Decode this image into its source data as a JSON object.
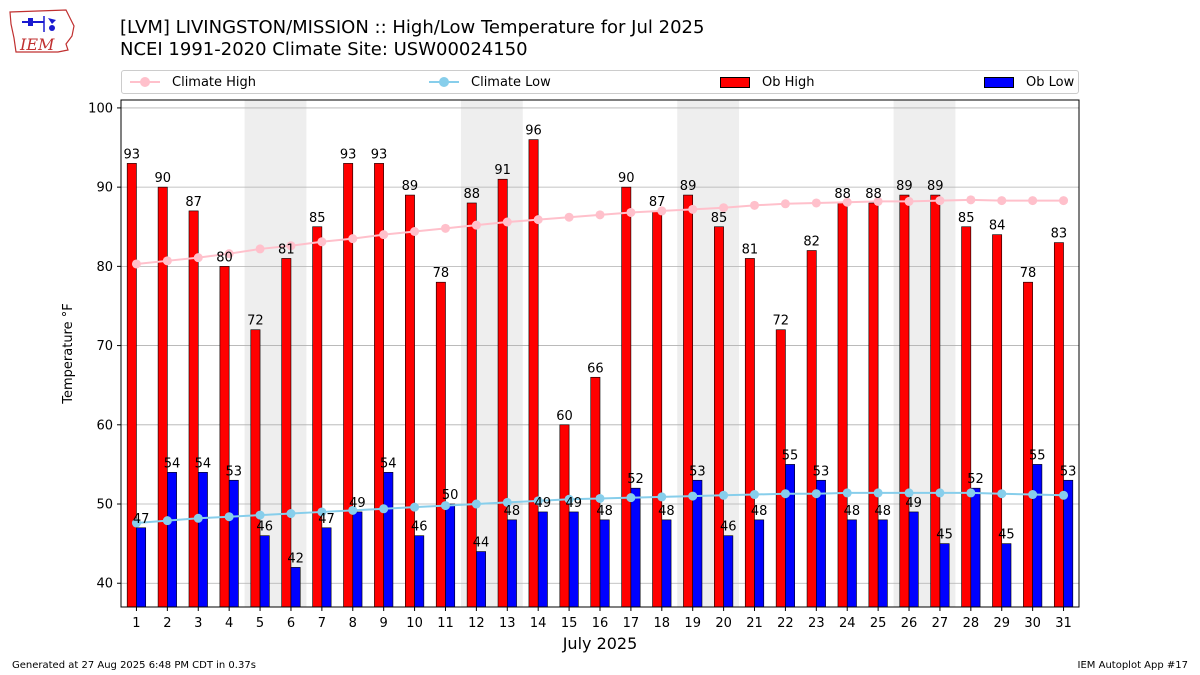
{
  "title_line1": "[LVM] LIVINGSTON/MISSION :: High/Low Temperature for Jul 2025",
  "title_line2": "NCEI 1991-2020 Climate Site: USW00024150",
  "logo_text": "IEM",
  "footer_left": "Generated at 27 Aug 2025 6:48 PM CDT in 0.37s",
  "footer_right": "IEM Autoplot App #17",
  "colors": {
    "ob_high": "#ff0000",
    "ob_low": "#0000ff",
    "climate_high": "#ffc0cb",
    "climate_low": "#87ceeb",
    "weekend_band": "#eeeeee",
    "grid": "#b0b0b0"
  },
  "legend": [
    {
      "label": "Climate High",
      "kind": "line",
      "color": "#ffc0cb"
    },
    {
      "label": "Climate Low",
      "kind": "line",
      "color": "#87ceeb"
    },
    {
      "label": "Ob High",
      "kind": "bar",
      "color": "#ff0000"
    },
    {
      "label": "Ob Low",
      "kind": "bar",
      "color": "#0000ff"
    }
  ],
  "chart_data": {
    "type": "bar",
    "title": "[LVM] LIVINGSTON/MISSION :: High/Low Temperature for Jul 2025",
    "subtitle": "NCEI 1991-2020 Climate Site: USW00024150",
    "xlabel": "July 2025",
    "ylabel": "Temperature °F",
    "ylim": [
      37,
      101
    ],
    "yticks": [
      40,
      50,
      60,
      70,
      80,
      90,
      100
    ],
    "grid": "y",
    "legend_position": "top",
    "categories": [
      "1",
      "2",
      "3",
      "4",
      "5",
      "6",
      "7",
      "8",
      "9",
      "10",
      "11",
      "12",
      "13",
      "14",
      "15",
      "16",
      "17",
      "18",
      "19",
      "20",
      "21",
      "22",
      "23",
      "24",
      "25",
      "26",
      "27",
      "28",
      "29",
      "30",
      "31"
    ],
    "weekend_bands": [
      [
        5,
        6
      ],
      [
        12,
        13
      ],
      [
        19,
        20
      ],
      [
        26,
        27
      ]
    ],
    "series": [
      {
        "name": "Ob High",
        "kind": "bar",
        "labels": true,
        "values": [
          93,
          90,
          87,
          80,
          72,
          81,
          85,
          93,
          93,
          89,
          78,
          88,
          91,
          96,
          60,
          66,
          90,
          87,
          89,
          85,
          81,
          72,
          82,
          88,
          88,
          89,
          89,
          85,
          84,
          78,
          83
        ]
      },
      {
        "name": "Ob Low",
        "kind": "bar",
        "labels": true,
        "values": [
          47,
          54,
          54,
          53,
          46,
          42,
          47,
          49,
          54,
          46,
          50,
          44,
          48,
          49,
          49,
          48,
          52,
          48,
          53,
          46,
          48,
          55,
          53,
          48,
          48,
          49,
          45,
          52,
          45,
          55,
          53
        ]
      },
      {
        "name": "Climate High",
        "kind": "line",
        "values": [
          80.3,
          80.7,
          81.1,
          81.6,
          82.2,
          82.6,
          83.1,
          83.5,
          84.0,
          84.4,
          84.8,
          85.2,
          85.6,
          85.9,
          86.2,
          86.5,
          86.8,
          87.0,
          87.2,
          87.4,
          87.7,
          87.9,
          88.0,
          88.1,
          88.2,
          88.2,
          88.3,
          88.4,
          88.3,
          88.3,
          88.3
        ]
      },
      {
        "name": "Climate Low",
        "kind": "line",
        "values": [
          47.6,
          47.9,
          48.2,
          48.4,
          48.6,
          48.8,
          49.0,
          49.2,
          49.4,
          49.6,
          49.8,
          50.0,
          50.2,
          50.4,
          50.6,
          50.7,
          50.8,
          50.9,
          51.0,
          51.1,
          51.2,
          51.3,
          51.3,
          51.4,
          51.4,
          51.4,
          51.4,
          51.4,
          51.3,
          51.2,
          51.1
        ]
      }
    ]
  }
}
